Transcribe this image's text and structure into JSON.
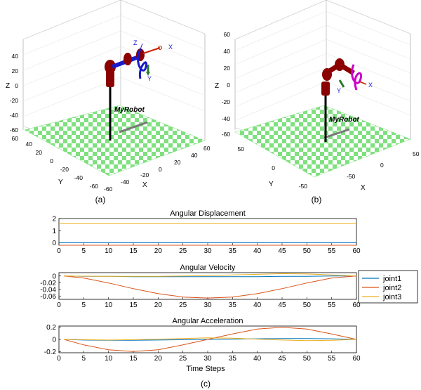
{
  "panel_labels": {
    "a": "(a)",
    "b": "(b)",
    "c": "(c)"
  },
  "robot_label": "MyRobot",
  "colors": {
    "joint1": "#0072BD",
    "joint2": "#D95319",
    "joint3": "#EDB120",
    "link_red": "#8B0000",
    "link_blue": "#1a1acc",
    "gripper_a": "#1a1acc",
    "gripper_b": "#cc00cc",
    "checker_green": "#7FE07F",
    "checker_white": "#ffffff"
  },
  "scene_a": {
    "axes": {
      "x": "X",
      "y": "Y",
      "z": "Z"
    },
    "z_ticks": [
      "40",
      "20",
      "0",
      "-20",
      "-40",
      "-60"
    ],
    "y_ticks": [
      "60",
      "40",
      "20",
      "0",
      "-20",
      "-40",
      "-60"
    ],
    "x_ticks": [
      "60",
      "40",
      "20",
      "0",
      "-20",
      "-40",
      "-60"
    ],
    "frame_labels": {
      "x": "X",
      "y": "Y",
      "z": "Z"
    }
  },
  "scene_b": {
    "axes": {
      "x": "X",
      "y": "Y",
      "z": "Z"
    },
    "z_ticks": [
      "60",
      "40",
      "20",
      "0",
      "-20",
      "-40",
      "-60"
    ],
    "y_ticks": [
      "50",
      "0",
      "-50"
    ],
    "x_ticks": [
      "50",
      "0",
      "-50"
    ],
    "frame_labels": {
      "x": "X",
      "y": "Y"
    }
  },
  "legend": {
    "entries": [
      "joint1",
      "joint2",
      "joint3"
    ]
  },
  "xlabel_shared": "Time Steps",
  "chart_data": [
    {
      "type": "line",
      "title": "Angular Displacement",
      "xlim": [
        0,
        60
      ],
      "ylim": [
        -0.2,
        2
      ],
      "xticks": [
        0,
        5,
        10,
        15,
        20,
        25,
        30,
        35,
        40,
        45,
        50,
        55,
        60
      ],
      "yticks": [
        0,
        1,
        2
      ],
      "x": [
        0,
        60
      ],
      "series": [
        {
          "name": "joint1",
          "values": [
            0,
            0
          ]
        },
        {
          "name": "joint2",
          "values": [
            -0.2,
            -0.2
          ]
        },
        {
          "name": "joint3",
          "values": [
            1.57,
            1.57
          ]
        }
      ]
    },
    {
      "type": "line",
      "title": "Angular Velocity",
      "xlim": [
        0,
        60
      ],
      "ylim": [
        -0.07,
        0.01
      ],
      "xticks": [
        0,
        5,
        10,
        15,
        20,
        25,
        30,
        35,
        40,
        45,
        50,
        55,
        60
      ],
      "yticks": [
        0,
        -0.02,
        -0.04,
        -0.06
      ],
      "ytick_labels": [
        "0",
        "-0.02",
        "-0.04",
        "-0.06"
      ],
      "x": [
        1,
        5,
        10,
        15,
        20,
        25,
        30,
        35,
        40,
        45,
        50,
        55,
        60
      ],
      "series": [
        {
          "name": "joint1",
          "values": [
            0,
            -0.001,
            -0.001,
            -0.002,
            -0.002,
            -0.002,
            -0.002,
            -0.002,
            -0.002,
            -0.001,
            -0.001,
            0,
            0
          ]
        },
        {
          "name": "joint2",
          "values": [
            0,
            -0.006,
            -0.021,
            -0.038,
            -0.053,
            -0.063,
            -0.066,
            -0.063,
            -0.053,
            -0.038,
            -0.021,
            -0.006,
            0
          ]
        },
        {
          "name": "joint3",
          "values": [
            0,
            -0.0005,
            -0.001,
            -0.001,
            -0.001,
            0,
            0.001,
            0.003,
            0.005,
            0.007,
            0.006,
            0.003,
            0
          ]
        }
      ]
    },
    {
      "type": "line",
      "title": "Angular Acceleration",
      "xlim": [
        0,
        60
      ],
      "ylim": [
        -0.22,
        0.22
      ],
      "xticks": [
        0,
        5,
        10,
        15,
        20,
        25,
        30,
        35,
        40,
        45,
        50,
        55,
        60
      ],
      "yticks": [
        0.2,
        0,
        -0.2
      ],
      "ytick_labels": [
        "0.2",
        "0",
        "-0.2"
      ],
      "x": [
        1,
        5,
        10,
        15,
        20,
        25,
        30,
        35,
        40,
        45,
        50,
        55,
        60
      ],
      "series": [
        {
          "name": "joint1",
          "values": [
            0,
            -0.01,
            -0.015,
            -0.015,
            -0.01,
            -0.005,
            0,
            0.005,
            0.01,
            0.015,
            0.015,
            0.01,
            0
          ]
        },
        {
          "name": "joint2",
          "values": [
            0,
            -0.09,
            -0.17,
            -0.2,
            -0.17,
            -0.09,
            0,
            0.09,
            0.17,
            0.2,
            0.17,
            0.09,
            0
          ]
        },
        {
          "name": "joint3",
          "values": [
            0,
            -0.005,
            -0.01,
            -0.005,
            0.005,
            0.015,
            0.025,
            0.02,
            0.005,
            -0.01,
            -0.02,
            -0.015,
            0
          ]
        }
      ]
    }
  ]
}
